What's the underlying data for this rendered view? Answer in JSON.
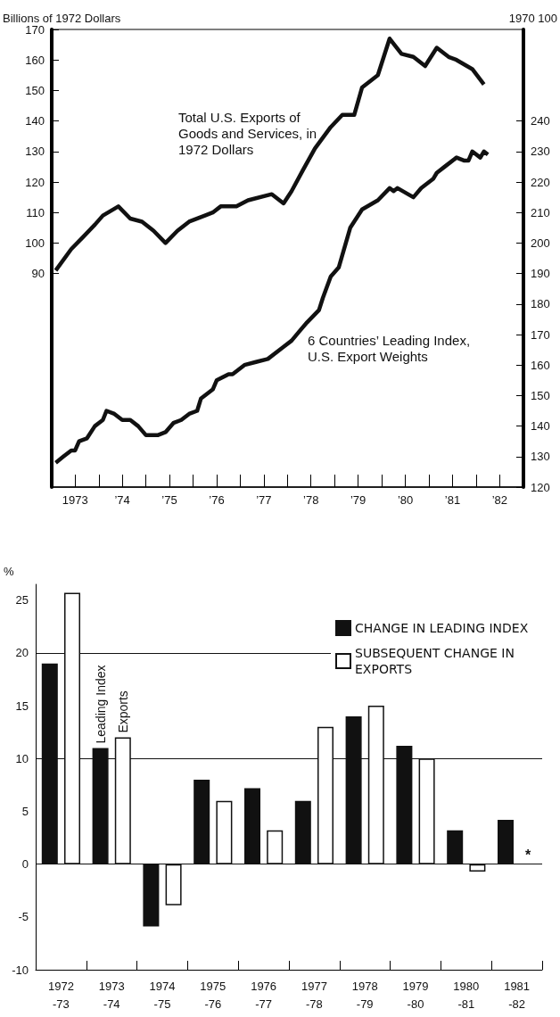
{
  "chart_data": [
    {
      "type": "line",
      "ylabel": "Billions of 1972 Dollars",
      "y2label": "1970 100",
      "xlim": [
        "1973-01",
        "1983-01"
      ],
      "xticks": [
        {
          "value": "1973-07",
          "label": "1973"
        },
        {
          "value": "1974-01",
          "label": null
        },
        {
          "value": "1974-07",
          "label": "’74"
        },
        {
          "value": "1975-01",
          "label": null
        },
        {
          "value": "1975-07",
          "label": "’75"
        },
        {
          "value": "1976-01",
          "label": null
        },
        {
          "value": "1976-07",
          "label": "’76"
        },
        {
          "value": "1977-01",
          "label": null
        },
        {
          "value": "1977-07",
          "label": "’77"
        },
        {
          "value": "1978-01",
          "label": null
        },
        {
          "value": "1978-07",
          "label": "’78"
        },
        {
          "value": "1979-01",
          "label": null
        },
        {
          "value": "1979-07",
          "label": "’79"
        },
        {
          "value": "1980-01",
          "label": null
        },
        {
          "value": "1980-07",
          "label": "’80"
        },
        {
          "value": "1981-01",
          "label": null
        },
        {
          "value": "1981-07",
          "label": "’81"
        },
        {
          "value": "1982-01",
          "label": null
        },
        {
          "value": "1982-07",
          "label": "’82"
        }
      ],
      "ylim": [
        20,
        170
      ],
      "yticks": [
        90,
        100,
        110,
        120,
        130,
        140,
        150,
        160,
        170
      ],
      "y2lim": [
        120,
        270
      ],
      "y2ticks": [
        120,
        130,
        140,
        150,
        160,
        170,
        180,
        190,
        200,
        210,
        220,
        230,
        240
      ],
      "grid": false,
      "legend": false,
      "series": [
        {
          "name": "Total U.S. Exports of Goods and Services, in 1972 Dollars",
          "color": "#111111",
          "x": [
            "1973-02",
            "1973-06",
            "1973-09",
            "1973-12",
            "1974-02",
            "1974-06",
            "1974-09",
            "1974-12",
            "1975-03",
            "1975-06",
            "1975-09",
            "1975-12",
            "1976-04",
            "1976-06",
            "1976-08",
            "1976-12",
            "1977-03",
            "1977-09",
            "1977-12",
            "1978-02",
            "1978-05",
            "1978-08",
            "1978-12",
            "1979-03",
            "1979-06",
            "1979-08",
            "1979-12",
            "1980-03",
            "1980-06",
            "1980-09",
            "1980-12",
            "1981-03",
            "1981-06",
            "1981-08",
            "1981-12",
            "1982-03"
          ],
          "values": [
            91,
            98,
            102,
            106,
            109,
            112,
            108,
            107,
            104,
            100,
            104,
            107,
            109,
            110,
            112,
            112,
            114,
            116,
            113,
            117,
            124,
            131,
            138,
            142,
            142,
            151,
            155,
            167,
            162,
            161,
            158,
            164,
            161,
            160,
            157,
            152
          ]
        },
        {
          "name": "6 Countries’ Leading Index, U.S. Export Weights",
          "color": "#111111",
          "axis": "y2",
          "x": [
            "1973-02",
            "1973-04",
            "1973-06",
            "1973-07",
            "1973-08",
            "1973-10",
            "1973-12",
            "1974-02",
            "1974-03",
            "1974-05",
            "1974-07",
            "1974-09",
            "1974-11",
            "1975-01",
            "1975-04",
            "1975-06",
            "1975-08",
            "1975-10",
            "1975-12",
            "1976-02",
            "1976-03",
            "1976-06",
            "1976-07",
            "1976-10",
            "1976-11",
            "1977-02",
            "1977-05",
            "1977-08",
            "1977-12",
            "1978-02",
            "1978-04",
            "1978-06",
            "1978-09",
            "1978-10",
            "1978-12",
            "1979-02",
            "1979-05",
            "1979-08",
            "1979-12",
            "1980-03",
            "1980-04",
            "1980-05",
            "1980-09",
            "1980-11",
            "1981-02",
            "1981-03",
            "1981-05",
            "1981-08",
            "1981-10",
            "1981-11",
            "1981-12",
            "1982-02",
            "1982-03",
            "1982-04"
          ],
          "values": [
            128,
            130,
            132,
            132,
            135,
            136,
            140,
            142,
            145,
            144,
            142,
            142,
            140,
            137,
            137,
            138,
            141,
            142,
            144,
            145,
            149,
            152,
            155,
            157,
            157,
            160,
            161,
            162,
            166,
            168,
            171,
            174,
            178,
            182,
            189,
            192,
            205,
            211,
            214,
            218,
            217,
            218,
            215,
            218,
            221,
            223,
            225,
            228,
            227,
            227,
            230,
            228,
            230,
            229
          ]
        }
      ]
    },
    {
      "type": "bar",
      "ylabel": "%",
      "categories": [
        "1972\n-73",
        "1973\n-74",
        "1974\n-75",
        "1975\n-76",
        "1976\n-77",
        "1977\n-78",
        "1978\n-79",
        "1979\n-80",
        "1980\n-81",
        "1981\n-82"
      ],
      "ylim": [
        -10,
        26.5
      ],
      "yticks": [
        -10,
        -5,
        0,
        5,
        10,
        15,
        20,
        25
      ],
      "grid": "y",
      "legend": "top right",
      "series": [
        {
          "name": "CHANGE IN LEADING INDEX",
          "color": "#111111",
          "values": [
            19,
            11,
            -5.9,
            8,
            7.2,
            6,
            14,
            11.2,
            3.2,
            4.2
          ]
        },
        {
          "name": "SUBSEQUENT CHANGE IN EXPORTS",
          "color": "#ffffff",
          "values": [
            25.7,
            12,
            -3.9,
            6,
            3.2,
            13,
            15,
            10,
            -0.7,
            null
          ]
        }
      ],
      "annotations": [
        {
          "text": "Leading Index",
          "x": "1973\n-74",
          "y": 11
        },
        {
          "text": "Exports",
          "x": "1973\n-74",
          "y": 12
        },
        {
          "text": "*",
          "x": "1981\n-82",
          "y": 0
        }
      ]
    }
  ]
}
